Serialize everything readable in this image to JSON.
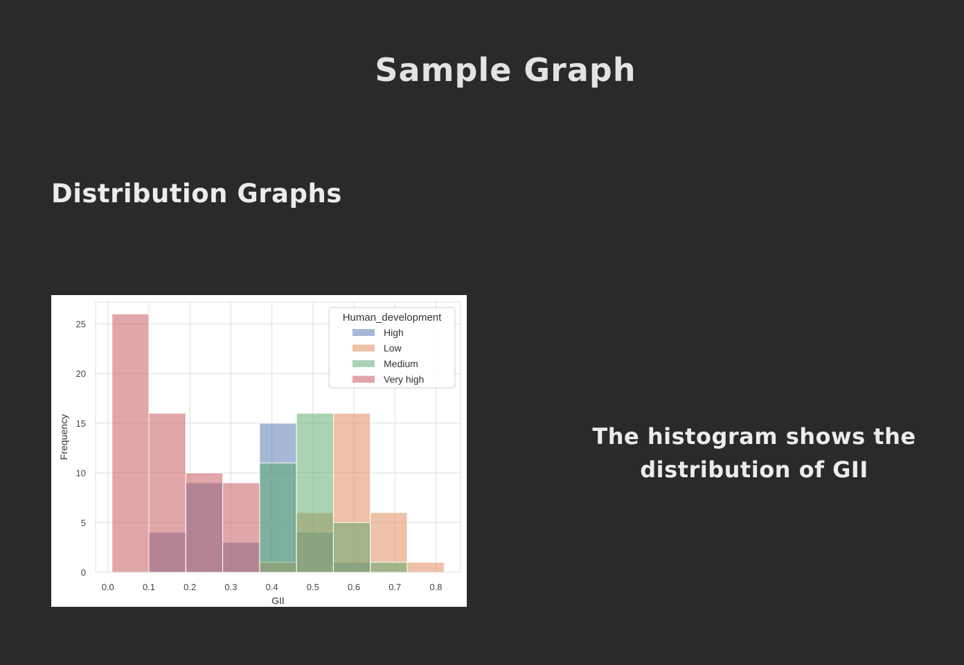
{
  "page": {
    "title": "Sample Graph",
    "section": "Distribution Graphs",
    "caption_line1": "The histogram shows the",
    "caption_line2": "distribution of GII"
  },
  "chart_data": {
    "type": "bar",
    "subtype": "overlaid-histogram",
    "title": "",
    "xlabel": "GII",
    "ylabel": "Frequency",
    "xlim": [
      -0.03,
      0.86
    ],
    "ylim": [
      0,
      27.2
    ],
    "xticks": [
      0.0,
      0.1,
      0.2,
      0.3,
      0.4,
      0.5,
      0.6,
      0.7,
      0.8
    ],
    "xtick_labels": [
      "0.0",
      "0.1",
      "0.2",
      "0.3",
      "0.4",
      "0.5",
      "0.6",
      "0.7",
      "0.8"
    ],
    "yticks": [
      0,
      5,
      10,
      15,
      20,
      25
    ],
    "ytick_labels": [
      "0",
      "5",
      "10",
      "15",
      "20",
      "25"
    ],
    "bin_edges": [
      0.01,
      0.1,
      0.19,
      0.28,
      0.37,
      0.46,
      0.55,
      0.64,
      0.73,
      0.82
    ],
    "grid": true,
    "legend": {
      "title": "Human_development",
      "placement": "top-right"
    },
    "series": [
      {
        "name": "High",
        "color": "#4c72b0",
        "values": [
          0,
          4,
          9,
          3,
          15,
          4,
          1,
          0,
          0
        ]
      },
      {
        "name": "Low",
        "color": "#dd8452",
        "values": [
          0,
          0,
          0,
          0,
          1,
          6,
          16,
          6,
          1
        ]
      },
      {
        "name": "Medium",
        "color": "#55a868",
        "values": [
          0,
          0,
          0,
          0,
          11,
          16,
          5,
          1,
          0
        ]
      },
      {
        "name": "Very high",
        "color": "#c44e52",
        "values": [
          26,
          16,
          10,
          9,
          0,
          0,
          0,
          0,
          0
        ]
      }
    ]
  }
}
